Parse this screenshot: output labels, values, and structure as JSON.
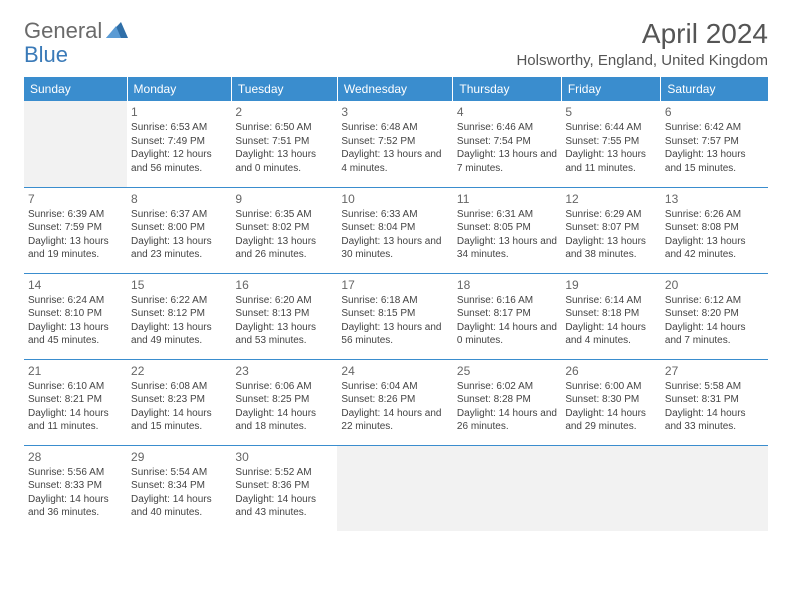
{
  "logo": {
    "text1": "General",
    "text2": "Blue"
  },
  "title": "April 2024",
  "location": "Holsworthy, England, United Kingdom",
  "dow": [
    "Sunday",
    "Monday",
    "Tuesday",
    "Wednesday",
    "Thursday",
    "Friday",
    "Saturday"
  ],
  "colors": {
    "header_bg": "#3a8dce",
    "header_fg": "#ffffff",
    "blank_bg": "#f2f2f2",
    "border": "#3a8dce",
    "logo_general": "#6a6a6a",
    "logo_blue": "#3a7ab8",
    "text": "#444444"
  },
  "weeks": [
    [
      {
        "blank": true
      },
      {
        "day": "1",
        "sunrise": "6:53 AM",
        "sunset": "7:49 PM",
        "daylight": "Daylight: 12 hours and 56 minutes."
      },
      {
        "day": "2",
        "sunrise": "6:50 AM",
        "sunset": "7:51 PM",
        "daylight": "Daylight: 13 hours and 0 minutes."
      },
      {
        "day": "3",
        "sunrise": "6:48 AM",
        "sunset": "7:52 PM",
        "daylight": "Daylight: 13 hours and 4 minutes."
      },
      {
        "day": "4",
        "sunrise": "6:46 AM",
        "sunset": "7:54 PM",
        "daylight": "Daylight: 13 hours and 7 minutes."
      },
      {
        "day": "5",
        "sunrise": "6:44 AM",
        "sunset": "7:55 PM",
        "daylight": "Daylight: 13 hours and 11 minutes."
      },
      {
        "day": "6",
        "sunrise": "6:42 AM",
        "sunset": "7:57 PM",
        "daylight": "Daylight: 13 hours and 15 minutes."
      }
    ],
    [
      {
        "day": "7",
        "sunrise": "6:39 AM",
        "sunset": "7:59 PM",
        "daylight": "Daylight: 13 hours and 19 minutes."
      },
      {
        "day": "8",
        "sunrise": "6:37 AM",
        "sunset": "8:00 PM",
        "daylight": "Daylight: 13 hours and 23 minutes."
      },
      {
        "day": "9",
        "sunrise": "6:35 AM",
        "sunset": "8:02 PM",
        "daylight": "Daylight: 13 hours and 26 minutes."
      },
      {
        "day": "10",
        "sunrise": "6:33 AM",
        "sunset": "8:04 PM",
        "daylight": "Daylight: 13 hours and 30 minutes."
      },
      {
        "day": "11",
        "sunrise": "6:31 AM",
        "sunset": "8:05 PM",
        "daylight": "Daylight: 13 hours and 34 minutes."
      },
      {
        "day": "12",
        "sunrise": "6:29 AM",
        "sunset": "8:07 PM",
        "daylight": "Daylight: 13 hours and 38 minutes."
      },
      {
        "day": "13",
        "sunrise": "6:26 AM",
        "sunset": "8:08 PM",
        "daylight": "Daylight: 13 hours and 42 minutes."
      }
    ],
    [
      {
        "day": "14",
        "sunrise": "6:24 AM",
        "sunset": "8:10 PM",
        "daylight": "Daylight: 13 hours and 45 minutes."
      },
      {
        "day": "15",
        "sunrise": "6:22 AM",
        "sunset": "8:12 PM",
        "daylight": "Daylight: 13 hours and 49 minutes."
      },
      {
        "day": "16",
        "sunrise": "6:20 AM",
        "sunset": "8:13 PM",
        "daylight": "Daylight: 13 hours and 53 minutes."
      },
      {
        "day": "17",
        "sunrise": "6:18 AM",
        "sunset": "8:15 PM",
        "daylight": "Daylight: 13 hours and 56 minutes."
      },
      {
        "day": "18",
        "sunrise": "6:16 AM",
        "sunset": "8:17 PM",
        "daylight": "Daylight: 14 hours and 0 minutes."
      },
      {
        "day": "19",
        "sunrise": "6:14 AM",
        "sunset": "8:18 PM",
        "daylight": "Daylight: 14 hours and 4 minutes."
      },
      {
        "day": "20",
        "sunrise": "6:12 AM",
        "sunset": "8:20 PM",
        "daylight": "Daylight: 14 hours and 7 minutes."
      }
    ],
    [
      {
        "day": "21",
        "sunrise": "6:10 AM",
        "sunset": "8:21 PM",
        "daylight": "Daylight: 14 hours and 11 minutes."
      },
      {
        "day": "22",
        "sunrise": "6:08 AM",
        "sunset": "8:23 PM",
        "daylight": "Daylight: 14 hours and 15 minutes."
      },
      {
        "day": "23",
        "sunrise": "6:06 AM",
        "sunset": "8:25 PM",
        "daylight": "Daylight: 14 hours and 18 minutes."
      },
      {
        "day": "24",
        "sunrise": "6:04 AM",
        "sunset": "8:26 PM",
        "daylight": "Daylight: 14 hours and 22 minutes."
      },
      {
        "day": "25",
        "sunrise": "6:02 AM",
        "sunset": "8:28 PM",
        "daylight": "Daylight: 14 hours and 26 minutes."
      },
      {
        "day": "26",
        "sunrise": "6:00 AM",
        "sunset": "8:30 PM",
        "daylight": "Daylight: 14 hours and 29 minutes."
      },
      {
        "day": "27",
        "sunrise": "5:58 AM",
        "sunset": "8:31 PM",
        "daylight": "Daylight: 14 hours and 33 minutes."
      }
    ],
    [
      {
        "day": "28",
        "sunrise": "5:56 AM",
        "sunset": "8:33 PM",
        "daylight": "Daylight: 14 hours and 36 minutes."
      },
      {
        "day": "29",
        "sunrise": "5:54 AM",
        "sunset": "8:34 PM",
        "daylight": "Daylight: 14 hours and 40 minutes."
      },
      {
        "day": "30",
        "sunrise": "5:52 AM",
        "sunset": "8:36 PM",
        "daylight": "Daylight: 14 hours and 43 minutes."
      },
      {
        "blank": true
      },
      {
        "blank": true
      },
      {
        "blank": true
      },
      {
        "blank": true
      }
    ]
  ],
  "labels": {
    "sunrise": "Sunrise:",
    "sunset": "Sunset:"
  }
}
